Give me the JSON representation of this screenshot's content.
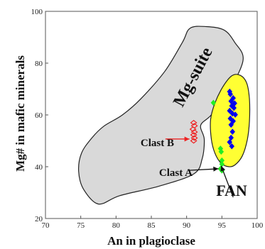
{
  "chart_data": {
    "type": "scatter",
    "xlabel": "An in plagioclase",
    "ylabel": "Mg# in mafic minerals",
    "xlim": [
      70,
      100
    ],
    "ylim": [
      20,
      100
    ],
    "xticks": [
      70,
      75,
      80,
      85,
      90,
      95,
      100
    ],
    "yticks": [
      20,
      40,
      60,
      80,
      100
    ],
    "grid": false,
    "regions": [
      {
        "name": "Mg-suite",
        "fill": "#d9d9d9",
        "stroke": "#222222",
        "outline": [
          [
            77.5,
            25.6
          ],
          [
            80.5,
            28.8
          ],
          [
            86.1,
            32.5
          ],
          [
            91.0,
            37.2
          ],
          [
            92.2,
            43.0
          ],
          [
            92.5,
            50.6
          ],
          [
            92.0,
            56.0
          ],
          [
            93.5,
            60.0
          ],
          [
            95.8,
            68.4
          ],
          [
            98.0,
            81.1
          ],
          [
            96.8,
            88.1
          ],
          [
            95.3,
            92.8
          ],
          [
            92.8,
            94.1
          ],
          [
            90.5,
            93.5
          ],
          [
            89.4,
            88.0
          ],
          [
            86.9,
            76.8
          ],
          [
            83.5,
            66.2
          ],
          [
            80.9,
            60.0
          ],
          [
            78.3,
            55.7
          ],
          [
            76.6,
            51.2
          ],
          [
            75.1,
            45.2
          ],
          [
            74.7,
            38.2
          ],
          [
            75.4,
            31.3
          ]
        ]
      },
      {
        "name": "FAN",
        "fill": "#ffff33",
        "stroke": "#222222",
        "outline": [
          [
            96.0,
            40.0
          ],
          [
            94.9,
            41.3
          ],
          [
            94.0,
            45.3
          ],
          [
            93.5,
            50.8
          ],
          [
            93.4,
            58.2
          ],
          [
            94.0,
            64.5
          ],
          [
            95.1,
            70.7
          ],
          [
            96.4,
            75.1
          ],
          [
            97.6,
            75.3
          ],
          [
            98.5,
            72.4
          ],
          [
            98.9,
            66.2
          ],
          [
            98.9,
            57.6
          ],
          [
            98.6,
            50.4
          ],
          [
            97.9,
            44.2
          ],
          [
            96.9,
            40.8
          ]
        ]
      }
    ],
    "series": [
      {
        "marker": "diamond",
        "color": "#0000ee",
        "points": [
          [
            96.1,
            69
          ],
          [
            96.2,
            68
          ],
          [
            96.6,
            66.5
          ],
          [
            96.3,
            65.3
          ],
          [
            96.8,
            64.5
          ],
          [
            96.4,
            63.5
          ],
          [
            96.7,
            62.7
          ],
          [
            96.1,
            61.6
          ],
          [
            96.5,
            60.5
          ],
          [
            96.9,
            60.1
          ],
          [
            96.2,
            58.6
          ],
          [
            96.6,
            57.6
          ],
          [
            96.3,
            56.2
          ],
          [
            96.5,
            53.5
          ],
          [
            96.3,
            51.2
          ],
          [
            96.1,
            49.5
          ],
          [
            96.4,
            47.9
          ]
        ]
      },
      {
        "marker": "diamond",
        "color": "#22ee22",
        "points": [
          [
            93.8,
            64.7
          ],
          [
            94.8,
            47
          ],
          [
            94.9,
            45.8
          ],
          [
            95.0,
            42.4
          ],
          [
            95.0,
            41.0
          ],
          [
            94.8,
            39.2
          ],
          [
            95.0,
            38.5
          ]
        ]
      },
      {
        "marker": "open-diamond",
        "color": "#ee2222",
        "points": [
          [
            91.0,
            57
          ],
          [
            91.1,
            55.8
          ],
          [
            90.9,
            54.5
          ],
          [
            91.1,
            53.4
          ],
          [
            91.0,
            52.3
          ],
          [
            91.1,
            51.1
          ],
          [
            91.0,
            50
          ]
        ]
      }
    ],
    "labels": {
      "mg_suite": "Mg-suite",
      "fan": "FAN",
      "clast_a": "Clast A",
      "clast_b": "Clast B"
    },
    "annotations": [
      {
        "text": "Clast B",
        "arrow_color": "#ee2222",
        "from": [
          87.0,
          50.7
        ],
        "to": [
          90.4,
          50.7
        ]
      },
      {
        "text": "Clast A",
        "arrow_color": "#111111",
        "from": [
          90.3,
          38.6
        ],
        "to": [
          94.5,
          39.2
        ]
      },
      {
        "text": "",
        "arrow_color": "#111111",
        "from": [
          96.6,
          28.2
        ],
        "to": [
          94.9,
          40.3
        ]
      }
    ]
  }
}
